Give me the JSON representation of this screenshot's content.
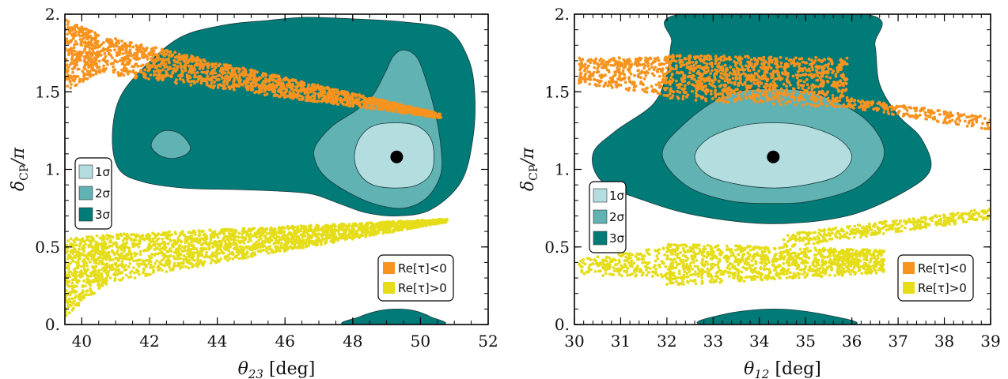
{
  "chart_data": [
    {
      "type": "scatter",
      "xlabel_symbol": "θ",
      "xlabel_sub": "23",
      "xlabel_unit": "[deg]",
      "ylabel_symbol": "δ",
      "ylabel_sub": "CP",
      "ylabel_tail": "/π",
      "xlim": [
        39.5,
        52
      ],
      "ylim": [
        0,
        2
      ],
      "xticks": [
        40,
        42,
        44,
        46,
        48,
        50,
        52
      ],
      "xtick_labels": [
        "40",
        "42",
        "44",
        "46",
        "48",
        "50",
        "52"
      ],
      "yticks": [
        0,
        0.5,
        1,
        1.5,
        2
      ],
      "ytick_labels": [
        "0.",
        "0.5",
        "1.",
        "1.5",
        "2."
      ],
      "best_fit": {
        "x": 49.3,
        "y": 1.08
      },
      "contours": [
        {
          "name": "3σ",
          "color": "#007b78",
          "polygons": [
            [
              [
                46.6,
                1.98
              ],
              [
                48.0,
                1.97
              ],
              [
                49.5,
                1.95
              ],
              [
                50.8,
                1.9
              ],
              [
                51.4,
                1.72
              ],
              [
                51.6,
                1.5
              ],
              [
                51.55,
                1.2
              ],
              [
                51.2,
                0.92
              ],
              [
                50.3,
                0.74
              ],
              [
                49.3,
                0.7
              ],
              [
                48.4,
                0.72
              ],
              [
                47.6,
                0.78
              ],
              [
                46.8,
                0.84
              ],
              [
                45.8,
                0.86
              ],
              [
                44.5,
                0.87
              ],
              [
                43.0,
                0.88
              ],
              [
                41.8,
                0.92
              ],
              [
                41.1,
                1.0
              ],
              [
                40.9,
                1.2
              ],
              [
                41.1,
                1.45
              ],
              [
                41.8,
                1.65
              ],
              [
                42.9,
                1.85
              ],
              [
                44.2,
                1.93
              ],
              [
                45.5,
                1.96
              ]
            ],
            [
              [
                47.8,
                0
              ],
              [
                48.2,
                0.05
              ],
              [
                48.8,
                0.09
              ],
              [
                49.3,
                0.1
              ],
              [
                49.8,
                0.09
              ],
              [
                50.3,
                0.05
              ],
              [
                50.6,
                0
              ]
            ]
          ]
        },
        {
          "name": "2σ",
          "color": "#61b2b3",
          "polygons": [
            [
              [
                49.5,
                1.77
              ],
              [
                49.9,
                1.72
              ],
              [
                50.2,
                1.55
              ],
              [
                50.45,
                1.35
              ],
              [
                50.6,
                1.15
              ],
              [
                50.6,
                0.97
              ],
              [
                50.2,
                0.82
              ],
              [
                49.5,
                0.75
              ],
              [
                48.6,
                0.78
              ],
              [
                47.8,
                0.86
              ],
              [
                47.2,
                0.95
              ],
              [
                46.9,
                1.05
              ],
              [
                46.9,
                1.15
              ],
              [
                47.4,
                1.28
              ],
              [
                48.1,
                1.38
              ],
              [
                48.6,
                1.48
              ],
              [
                48.95,
                1.62
              ],
              [
                49.2,
                1.73
              ]
            ],
            [
              [
                42.2,
                1.22
              ],
              [
                42.5,
                1.25
              ],
              [
                42.9,
                1.23
              ],
              [
                43.2,
                1.15
              ],
              [
                43.1,
                1.1
              ],
              [
                42.7,
                1.07
              ],
              [
                42.3,
                1.09
              ],
              [
                42.05,
                1.15
              ]
            ]
          ]
        },
        {
          "name": "1σ",
          "color": "#b4dde0",
          "polygons": [
            [
              [
                48.6,
                1.28
              ],
              [
                49.3,
                1.3
              ],
              [
                49.9,
                1.28
              ],
              [
                50.3,
                1.2
              ],
              [
                50.4,
                1.08
              ],
              [
                50.3,
                0.97
              ],
              [
                49.9,
                0.9
              ],
              [
                49.3,
                0.88
              ],
              [
                48.6,
                0.9
              ],
              [
                48.2,
                0.97
              ],
              [
                48.05,
                1.08
              ],
              [
                48.2,
                1.2
              ]
            ]
          ]
        }
      ],
      "series": [
        {
          "name": "Re[τ]<0",
          "color": "#f7931e",
          "bands": [
            {
              "x_start": 39.5,
              "x_end": 40.5,
              "y_low_start": 1.5,
              "y_low_end": 1.62,
              "y_high_start": 1.97,
              "y_high_end": 1.87
            },
            {
              "x_start": 40.5,
              "x_end": 50.6,
              "y_low_start": 1.62,
              "y_low_end": 1.33,
              "y_high_start": 1.87,
              "y_high_end": 1.36
            }
          ]
        },
        {
          "name": "Re[τ]>0",
          "color": "#e6dd1a",
          "bands": [
            {
              "x_start": 39.5,
              "x_end": 40.8,
              "y_low_start": 0.05,
              "y_low_end": 0.27,
              "y_high_start": 0.55,
              "y_high_end": 0.58
            },
            {
              "x_start": 40.8,
              "x_end": 50.8,
              "y_low_start": 0.27,
              "y_low_end": 0.66,
              "y_high_start": 0.58,
              "y_high_end": 0.68
            }
          ]
        }
      ],
      "sigma_legend": [
        "1σ",
        "2σ",
        "3σ"
      ],
      "point_legend": [
        "Re[τ]<0",
        "Re[τ]>0"
      ]
    },
    {
      "type": "scatter",
      "xlabel_symbol": "θ",
      "xlabel_sub": "12",
      "xlabel_unit": "[deg]",
      "ylabel_symbol": "δ",
      "ylabel_sub": "CP",
      "ylabel_tail": "/π",
      "xlim": [
        30,
        39
      ],
      "ylim": [
        0,
        2
      ],
      "xticks": [
        30,
        31,
        32,
        33,
        34,
        35,
        36,
        37,
        38,
        39
      ],
      "xtick_labels": [
        "30",
        "31",
        "32",
        "33",
        "34",
        "35",
        "36",
        "37",
        "38",
        "39"
      ],
      "yticks": [
        0,
        0.5,
        1,
        1.5,
        2
      ],
      "ytick_labels": [
        "0.",
        "0.5",
        "1.",
        "1.5",
        "2."
      ],
      "best_fit": {
        "x": 34.3,
        "y": 1.08
      },
      "contours": [
        {
          "name": "3σ",
          "color": "#007b78",
          "polygons": [
            [
              [
                32.3,
                2.0
              ],
              [
                36.3,
                2.0
              ],
              [
                36.5,
                1.8
              ],
              [
                36.6,
                1.55
              ],
              [
                37.0,
                1.35
              ],
              [
                37.5,
                1.2
              ],
              [
                37.7,
                1.0
              ],
              [
                37.1,
                0.85
              ],
              [
                35.9,
                0.7
              ],
              [
                34.3,
                0.65
              ],
              [
                32.7,
                0.7
              ],
              [
                31.5,
                0.8
              ],
              [
                30.6,
                0.92
              ],
              [
                30.4,
                1.1
              ],
              [
                30.9,
                1.25
              ],
              [
                31.7,
                1.42
              ],
              [
                32.0,
                1.62
              ],
              [
                32.1,
                1.82
              ]
            ],
            [
              [
                32.8,
                0
              ],
              [
                33.3,
                0.07
              ],
              [
                34.3,
                0.1
              ],
              [
                35.3,
                0.07
              ],
              [
                36.0,
                0
              ]
            ]
          ]
        },
        {
          "name": "2σ",
          "color": "#61b2b3",
          "polygons": [
            [
              [
                33.3,
                1.48
              ],
              [
                34.3,
                1.52
              ],
              [
                35.3,
                1.48
              ],
              [
                36.3,
                1.32
              ],
              [
                36.7,
                1.1
              ],
              [
                36.2,
                0.9
              ],
              [
                35.2,
                0.8
              ],
              [
                34.3,
                0.78
              ],
              [
                33.3,
                0.8
              ],
              [
                32.4,
                0.9
              ],
              [
                31.9,
                1.1
              ],
              [
                32.4,
                1.3
              ]
            ]
          ]
        },
        {
          "name": "1σ",
          "color": "#b4dde0",
          "polygons": [
            [
              [
                33.6,
                1.28
              ],
              [
                34.3,
                1.3
              ],
              [
                35.0,
                1.28
              ],
              [
                35.7,
                1.2
              ],
              [
                36.0,
                1.08
              ],
              [
                35.7,
                0.96
              ],
              [
                35.0,
                0.9
              ],
              [
                34.3,
                0.88
              ],
              [
                33.6,
                0.9
              ],
              [
                32.9,
                0.96
              ],
              [
                32.6,
                1.08
              ],
              [
                32.9,
                1.2
              ]
            ]
          ]
        }
      ],
      "series": [
        {
          "name": "Re[τ]<0",
          "color": "#f7931e",
          "bands": [
            {
              "x_start": 30.1,
              "x_end": 31.9,
              "y_low_start": 1.55,
              "y_low_end": 1.48,
              "y_high_start": 1.72,
              "y_high_end": 1.72
            },
            {
              "x_start": 31.9,
              "x_end": 35.9,
              "y_low_start": 1.45,
              "y_low_end": 1.4,
              "y_high_start": 1.74,
              "y_high_end": 1.72
            },
            {
              "x_start": 35.9,
              "x_end": 39,
              "y_low_start": 1.4,
              "y_low_end": 1.25,
              "y_high_start": 1.46,
              "y_high_end": 1.34
            }
          ]
        },
        {
          "name": "Re[τ]>0",
          "color": "#e6dd1a",
          "bands": [
            {
              "x_start": 30.1,
              "x_end": 32.0,
              "y_low_start": 0.32,
              "y_low_end": 0.3,
              "y_high_start": 0.42,
              "y_high_end": 0.5
            },
            {
              "x_start": 32.0,
              "x_end": 36.7,
              "y_low_start": 0.25,
              "y_low_end": 0.33,
              "y_high_start": 0.52,
              "y_high_end": 0.48
            },
            {
              "x_start": 34.5,
              "x_end": 39,
              "y_low_start": 0.49,
              "y_low_end": 0.68,
              "y_high_start": 0.58,
              "y_high_end": 0.75
            }
          ]
        }
      ],
      "sigma_legend": [
        "1σ",
        "2σ",
        "3σ"
      ],
      "point_legend": [
        "Re[τ]<0",
        "Re[τ]>0"
      ]
    }
  ]
}
